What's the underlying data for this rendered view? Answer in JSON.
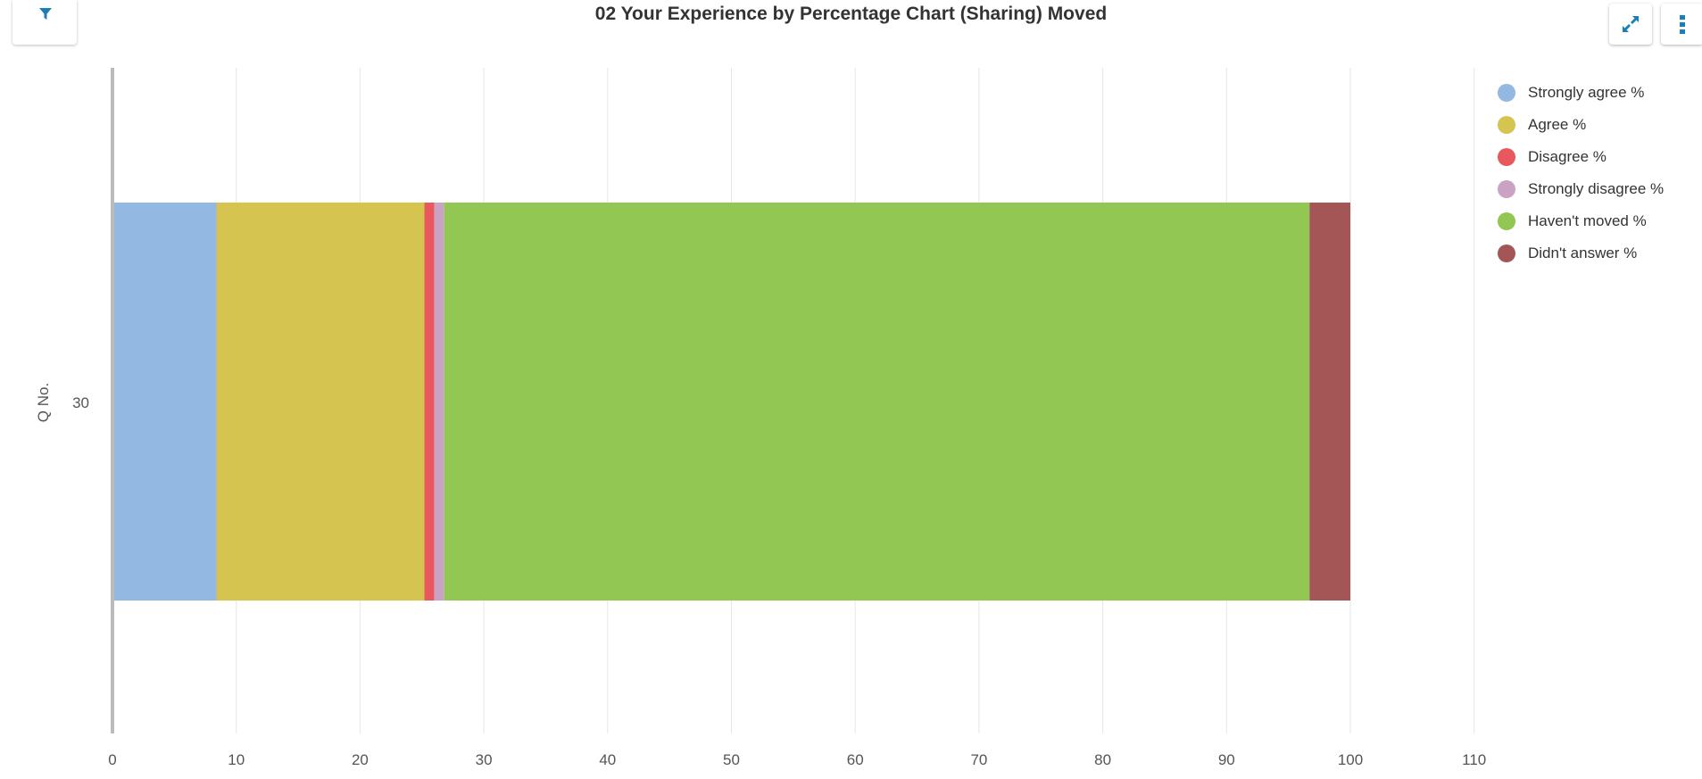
{
  "title": "02 Your Experience by Percentage Chart (Sharing) Moved",
  "toolbar": {
    "filter_icon": "filter-icon",
    "expand_icon": "expand-icon",
    "menu_icon": "more-vertical-icon",
    "accent": "#1a7fb4"
  },
  "chart_data": {
    "type": "bar",
    "orientation": "horizontal",
    "stacked": true,
    "categories": [
      "30"
    ],
    "ylabel": "Q No.",
    "xlabel": "",
    "xlim": [
      0,
      110
    ],
    "xticks": [
      0,
      10,
      20,
      30,
      40,
      50,
      60,
      70,
      80,
      90,
      100,
      110
    ],
    "grid": true,
    "legend_position": "right",
    "series": [
      {
        "name": "Strongly agree %",
        "color": "#93b9e2",
        "values": [
          8.4
        ]
      },
      {
        "name": "Agree %",
        "color": "#d5c44f",
        "values": [
          16.8
        ]
      },
      {
        "name": "Disagree %",
        "color": "#e8585c",
        "values": [
          0.8
        ]
      },
      {
        "name": "Strongly disagree %",
        "color": "#c9a2c4",
        "values": [
          0.8
        ]
      },
      {
        "name": "Haven't moved %",
        "color": "#91c752",
        "values": [
          69.9
        ]
      },
      {
        "name": "Didn't answer %",
        "color": "#a45656",
        "values": [
          3.3
        ]
      }
    ]
  }
}
